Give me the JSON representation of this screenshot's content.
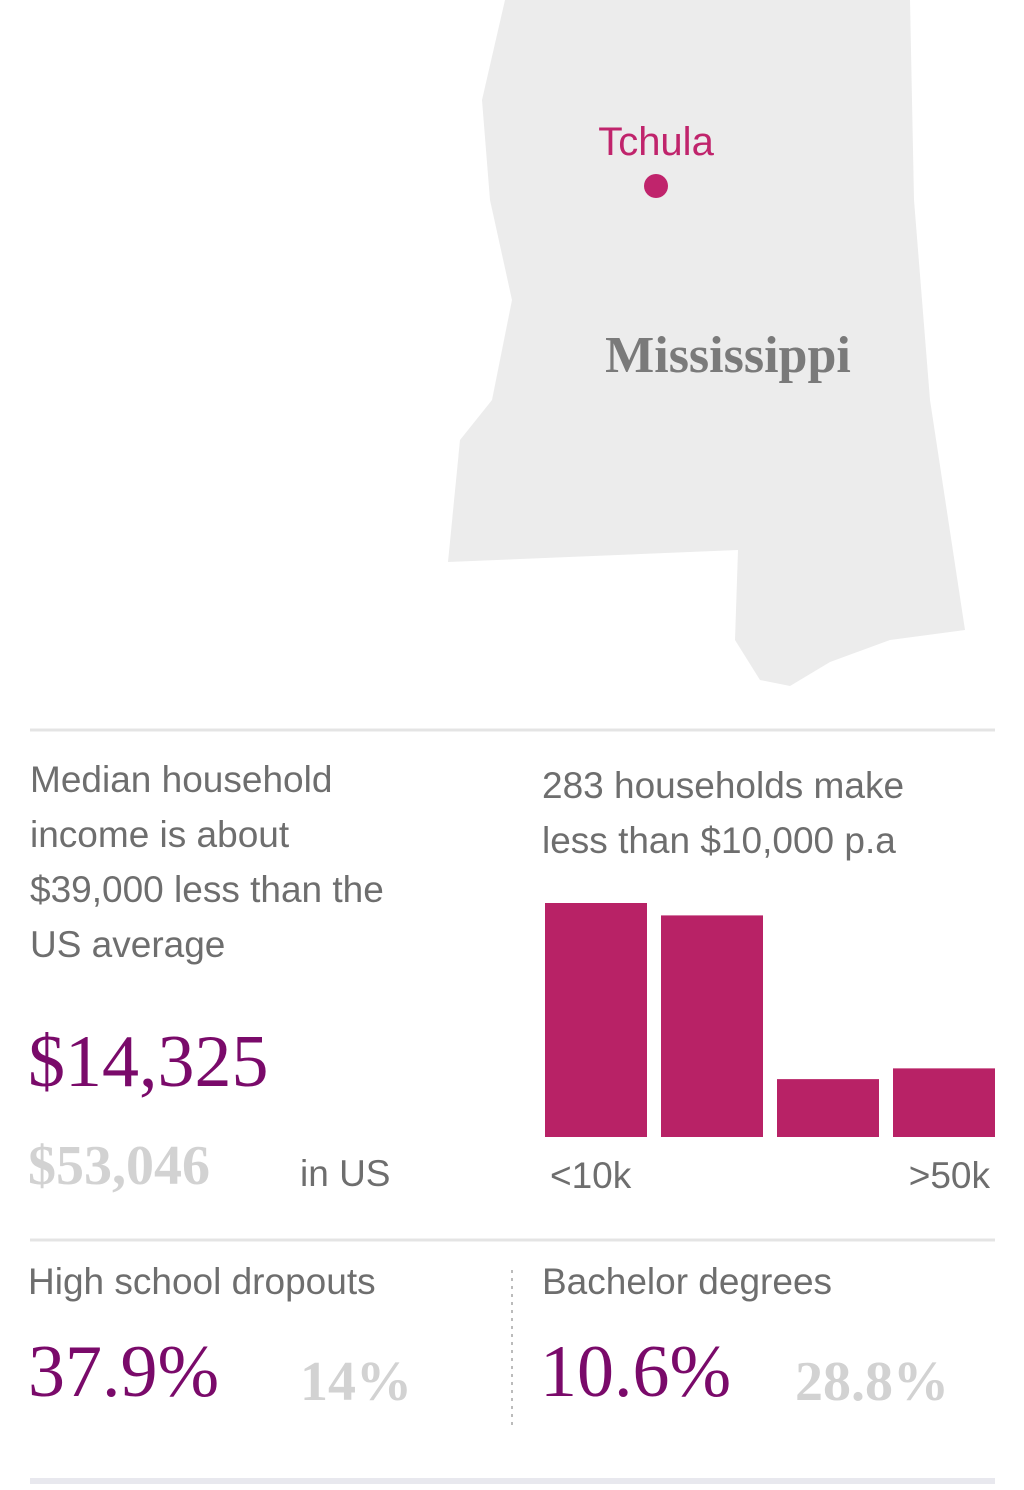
{
  "map": {
    "city": "Tchula",
    "state": "Mississippi"
  },
  "income": {
    "text": "Median household income is about $39,000 less than the US average",
    "local": "$14,325",
    "us": "$53,046",
    "us_label": "in US"
  },
  "chart_data": {
    "type": "bar",
    "title": "283 households make less than $10,000 p.a",
    "categories": [
      "<10k",
      null,
      null,
      ">50k"
    ],
    "values": [
      283,
      268,
      70,
      83
    ],
    "color": "#b82266",
    "ylim": [
      0,
      283
    ]
  },
  "education": [
    {
      "label": "High school dropouts",
      "local": "37.9%",
      "us": "14%"
    },
    {
      "label": "Bachelor degrees",
      "local": "10.6%",
      "us": "28.8%"
    }
  ]
}
